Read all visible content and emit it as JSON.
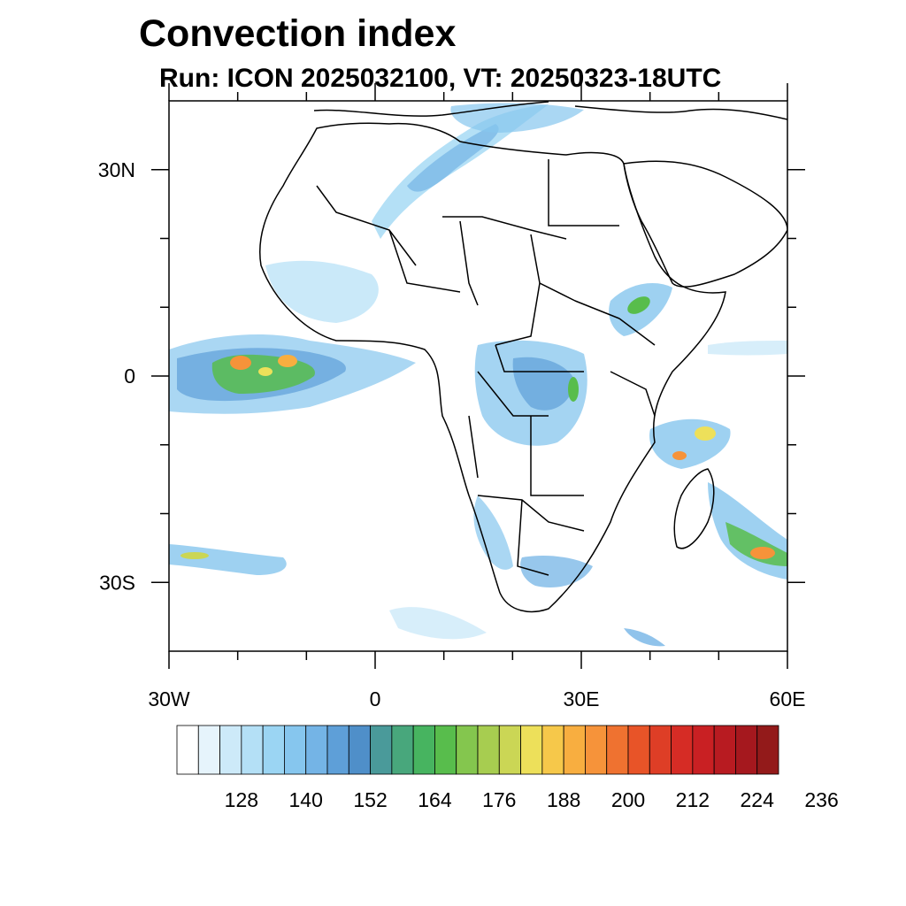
{
  "title": "Convection index",
  "subtitle": "Run: ICON 2025032100,  VT: 20250323-18UTC",
  "map": {
    "lon_range": [
      -30,
      60
    ],
    "lat_range": [
      -40,
      40
    ],
    "lon_ticks": [
      {
        "value": -30,
        "label": "30W"
      },
      {
        "value": 0,
        "label": "0"
      },
      {
        "value": 30,
        "label": "30E"
      },
      {
        "value": 60,
        "label": "60E"
      }
    ],
    "lat_ticks": [
      {
        "value": 30,
        "label": "30N"
      },
      {
        "value": 0,
        "label": "0"
      },
      {
        "value": -30,
        "label": "30S"
      }
    ],
    "minor_lon_ticks": [
      -20,
      -10,
      10,
      20,
      40,
      50
    ],
    "minor_lat_ticks": [
      20,
      10,
      -10,
      -20
    ]
  },
  "colorbar": {
    "colors": [
      "#ffffff",
      "#e6f4fc",
      "#cdeaf9",
      "#b4e0f6",
      "#9bd5f3",
      "#86c6ee",
      "#74b4e6",
      "#5e9fd8",
      "#4f8fc9",
      "#4a9a9a",
      "#48a77c",
      "#47b460",
      "#58bd4c",
      "#84c64e",
      "#a7cd50",
      "#cbd655",
      "#ede05a",
      "#f6c84a",
      "#f8ae40",
      "#f6933a",
      "#ef7230",
      "#e85428",
      "#de3e26",
      "#d62c25",
      "#c92023",
      "#b81b21",
      "#a5181e",
      "#931a1a"
    ],
    "labels": [
      "128",
      "140",
      "152",
      "164",
      "176",
      "188",
      "200",
      "212",
      "224",
      "236"
    ]
  }
}
